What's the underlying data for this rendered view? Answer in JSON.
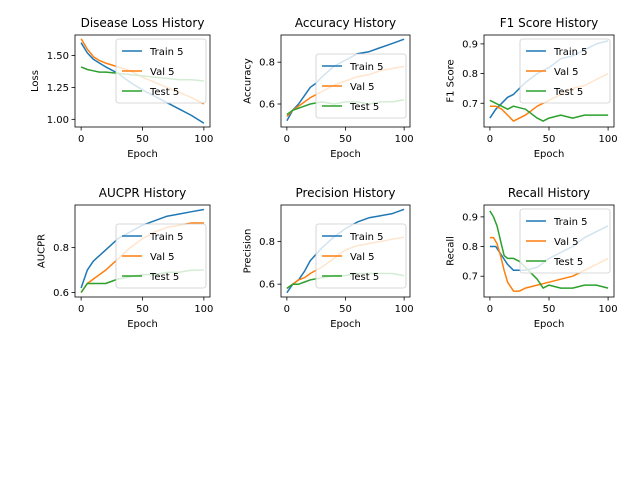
{
  "chart_data": [
    {
      "type": "line",
      "title": "Disease Loss History",
      "xlabel": "Epoch",
      "ylabel": "Loss",
      "xlim": [
        -5,
        105
      ],
      "ylim": [
        0.94,
        1.66
      ],
      "xticks": [
        0,
        50,
        100
      ],
      "xtick_labels": [
        "0",
        "50",
        "100"
      ],
      "yticks": [
        1.0,
        1.25,
        1.5
      ],
      "ytick_labels": [
        "1.00",
        "1.25",
        "1.50"
      ],
      "legend": "upper-right",
      "series": [
        {
          "name": "Train 5",
          "color": "#1f77b4",
          "x": [
            0,
            5,
            10,
            15,
            20,
            30,
            40,
            50,
            60,
            70,
            80,
            90,
            100
          ],
          "y": [
            1.6,
            1.52,
            1.47,
            1.44,
            1.41,
            1.36,
            1.29,
            1.23,
            1.18,
            1.13,
            1.08,
            1.03,
            0.97
          ]
        },
        {
          "name": "Val 5",
          "color": "#ff7f0e",
          "x": [
            0,
            5,
            10,
            15,
            20,
            30,
            40,
            50,
            60,
            70,
            80,
            90,
            100
          ],
          "y": [
            1.63,
            1.55,
            1.49,
            1.46,
            1.44,
            1.41,
            1.38,
            1.33,
            1.29,
            1.25,
            1.21,
            1.17,
            1.12
          ]
        },
        {
          "name": "Test 5",
          "color": "#2ca02c",
          "x": [
            0,
            5,
            10,
            15,
            20,
            30,
            40,
            50,
            60,
            70,
            80,
            90,
            100
          ],
          "y": [
            1.41,
            1.39,
            1.38,
            1.37,
            1.37,
            1.36,
            1.35,
            1.34,
            1.33,
            1.32,
            1.31,
            1.31,
            1.3
          ]
        }
      ]
    },
    {
      "type": "line",
      "title": "Accuracy History",
      "xlabel": "Epoch",
      "ylabel": "Accuracy",
      "xlim": [
        -5,
        105
      ],
      "ylim": [
        0.49,
        0.93
      ],
      "xticks": [
        0,
        50,
        100
      ],
      "xtick_labels": [
        "0",
        "50",
        "100"
      ],
      "yticks": [
        0.6,
        0.8
      ],
      "ytick_labels": [
        "0.6",
        "0.8"
      ],
      "legend": "center-right",
      "series": [
        {
          "name": "Train 5",
          "color": "#1f77b4",
          "x": [
            0,
            5,
            10,
            15,
            20,
            25,
            30,
            40,
            50,
            60,
            70,
            80,
            90,
            100
          ],
          "y": [
            0.52,
            0.57,
            0.6,
            0.64,
            0.68,
            0.7,
            0.73,
            0.78,
            0.81,
            0.84,
            0.85,
            0.87,
            0.89,
            0.91
          ]
        },
        {
          "name": "Val 5",
          "color": "#ff7f0e",
          "x": [
            0,
            5,
            10,
            15,
            20,
            30,
            40,
            50,
            60,
            70,
            80,
            90,
            100
          ],
          "y": [
            0.54,
            0.57,
            0.59,
            0.61,
            0.63,
            0.66,
            0.69,
            0.71,
            0.73,
            0.74,
            0.76,
            0.77,
            0.78
          ]
        },
        {
          "name": "Test 5",
          "color": "#2ca02c",
          "x": [
            0,
            5,
            10,
            15,
            20,
            30,
            40,
            50,
            60,
            70,
            80,
            90,
            100
          ],
          "y": [
            0.55,
            0.57,
            0.58,
            0.59,
            0.6,
            0.61,
            0.6,
            0.61,
            0.61,
            0.6,
            0.61,
            0.61,
            0.62
          ]
        }
      ]
    },
    {
      "type": "line",
      "title": "F1 Score History",
      "xlabel": "Epoch",
      "ylabel": "F1 Score",
      "xlim": [
        -5,
        105
      ],
      "ylim": [
        0.62,
        0.93
      ],
      "xticks": [
        0,
        50,
        100
      ],
      "xtick_labels": [
        "0",
        "50",
        "100"
      ],
      "yticks": [
        0.7,
        0.8,
        0.9
      ],
      "ytick_labels": [
        "0.7",
        "0.8",
        "0.9"
      ],
      "legend": "upper-right",
      "series": [
        {
          "name": "Train 5",
          "color": "#1f77b4",
          "x": [
            0,
            5,
            10,
            15,
            20,
            25,
            30,
            40,
            50,
            60,
            70,
            80,
            90,
            100
          ],
          "y": [
            0.65,
            0.68,
            0.7,
            0.72,
            0.73,
            0.75,
            0.77,
            0.8,
            0.82,
            0.85,
            0.86,
            0.88,
            0.9,
            0.91
          ]
        },
        {
          "name": "Val 5",
          "color": "#ff7f0e",
          "x": [
            0,
            5,
            10,
            15,
            20,
            25,
            30,
            40,
            50,
            60,
            70,
            80,
            90,
            100
          ],
          "y": [
            0.69,
            0.69,
            0.68,
            0.66,
            0.64,
            0.65,
            0.66,
            0.69,
            0.71,
            0.73,
            0.75,
            0.76,
            0.78,
            0.8
          ]
        },
        {
          "name": "Test 5",
          "color": "#2ca02c",
          "x": [
            0,
            5,
            10,
            15,
            20,
            30,
            40,
            45,
            50,
            60,
            70,
            80,
            90,
            100
          ],
          "y": [
            0.71,
            0.7,
            0.69,
            0.68,
            0.69,
            0.68,
            0.65,
            0.64,
            0.65,
            0.66,
            0.65,
            0.66,
            0.66,
            0.66
          ]
        }
      ]
    },
    {
      "type": "line",
      "title": "AUCPR History",
      "xlabel": "Epoch",
      "ylabel": "AUCPR",
      "xlim": [
        -5,
        105
      ],
      "ylim": [
        0.58,
        0.99
      ],
      "xticks": [
        0,
        50,
        100
      ],
      "xtick_labels": [
        "0",
        "50",
        "100"
      ],
      "yticks": [
        0.6,
        0.8
      ],
      "ytick_labels": [
        "0.6",
        "0.8"
      ],
      "legend": "center-right",
      "series": [
        {
          "name": "Train 5",
          "color": "#1f77b4",
          "x": [
            0,
            5,
            10,
            20,
            30,
            40,
            50,
            60,
            70,
            80,
            90,
            100
          ],
          "y": [
            0.62,
            0.7,
            0.74,
            0.79,
            0.84,
            0.87,
            0.9,
            0.92,
            0.94,
            0.95,
            0.96,
            0.97
          ]
        },
        {
          "name": "Val 5",
          "color": "#ff7f0e",
          "x": [
            0,
            5,
            10,
            20,
            30,
            40,
            50,
            60,
            70,
            80,
            90,
            100
          ],
          "y": [
            0.6,
            0.64,
            0.66,
            0.7,
            0.75,
            0.8,
            0.84,
            0.87,
            0.89,
            0.9,
            0.91,
            0.91
          ]
        },
        {
          "name": "Test 5",
          "color": "#2ca02c",
          "x": [
            0,
            5,
            10,
            20,
            30,
            40,
            50,
            60,
            70,
            80,
            90,
            100
          ],
          "y": [
            0.6,
            0.64,
            0.64,
            0.64,
            0.66,
            0.67,
            0.68,
            0.68,
            0.69,
            0.69,
            0.7,
            0.7
          ]
        }
      ]
    },
    {
      "type": "line",
      "title": "Precision History",
      "xlabel": "Epoch",
      "ylabel": "Precision",
      "xlim": [
        -5,
        105
      ],
      "ylim": [
        0.54,
        0.97
      ],
      "xticks": [
        0,
        50,
        100
      ],
      "xtick_labels": [
        "0",
        "50",
        "100"
      ],
      "yticks": [
        0.6,
        0.8
      ],
      "ytick_labels": [
        "0.6",
        "0.8"
      ],
      "legend": "center-right",
      "series": [
        {
          "name": "Train 5",
          "color": "#1f77b4",
          "x": [
            0,
            5,
            10,
            15,
            20,
            30,
            40,
            50,
            60,
            70,
            80,
            90,
            100
          ],
          "y": [
            0.56,
            0.6,
            0.62,
            0.66,
            0.71,
            0.77,
            0.82,
            0.86,
            0.89,
            0.91,
            0.92,
            0.93,
            0.95
          ]
        },
        {
          "name": "Val 5",
          "color": "#ff7f0e",
          "x": [
            0,
            5,
            10,
            15,
            20,
            30,
            40,
            50,
            60,
            70,
            80,
            90,
            100
          ],
          "y": [
            0.58,
            0.6,
            0.62,
            0.63,
            0.65,
            0.68,
            0.72,
            0.76,
            0.78,
            0.79,
            0.8,
            0.81,
            0.82
          ]
        },
        {
          "name": "Test 5",
          "color": "#2ca02c",
          "x": [
            0,
            5,
            10,
            15,
            20,
            30,
            40,
            50,
            60,
            70,
            80,
            90,
            100
          ],
          "y": [
            0.58,
            0.6,
            0.6,
            0.61,
            0.62,
            0.63,
            0.64,
            0.64,
            0.65,
            0.65,
            0.65,
            0.65,
            0.64
          ]
        }
      ]
    },
    {
      "type": "line",
      "title": "Recall History",
      "xlabel": "Epoch",
      "ylabel": "Recall",
      "xlim": [
        -5,
        105
      ],
      "ylim": [
        0.63,
        0.94
      ],
      "xticks": [
        0,
        50,
        100
      ],
      "xtick_labels": [
        "0",
        "50",
        "100"
      ],
      "yticks": [
        0.7,
        0.8,
        0.9
      ],
      "ytick_labels": [
        "0.7",
        "0.8",
        "0.9"
      ],
      "legend": "upper-right",
      "series": [
        {
          "name": "Train 5",
          "color": "#1f77b4",
          "x": [
            0,
            5,
            10,
            15,
            20,
            30,
            40,
            50,
            60,
            70,
            80,
            90,
            100
          ],
          "y": [
            0.8,
            0.8,
            0.77,
            0.74,
            0.72,
            0.72,
            0.73,
            0.76,
            0.78,
            0.8,
            0.83,
            0.85,
            0.87
          ]
        },
        {
          "name": "Val 5",
          "color": "#ff7f0e",
          "x": [
            0,
            3,
            6,
            9,
            12,
            15,
            20,
            25,
            30,
            40,
            50,
            60,
            70,
            80,
            90,
            100
          ],
          "y": [
            0.83,
            0.83,
            0.81,
            0.77,
            0.72,
            0.68,
            0.65,
            0.65,
            0.66,
            0.67,
            0.68,
            0.69,
            0.7,
            0.72,
            0.74,
            0.76
          ]
        },
        {
          "name": "Test 5",
          "color": "#2ca02c",
          "x": [
            0,
            3,
            6,
            9,
            12,
            15,
            20,
            25,
            30,
            40,
            45,
            50,
            60,
            70,
            80,
            90,
            100
          ],
          "y": [
            0.92,
            0.9,
            0.87,
            0.82,
            0.77,
            0.76,
            0.76,
            0.75,
            0.73,
            0.69,
            0.66,
            0.67,
            0.66,
            0.66,
            0.67,
            0.67,
            0.66
          ]
        }
      ]
    }
  ]
}
